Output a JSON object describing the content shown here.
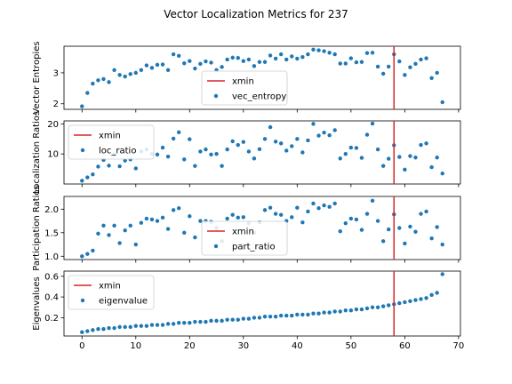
{
  "figure": {
    "title": "Vector Localization Metrics for 237",
    "x_ticks": [
      0,
      10,
      20,
      30,
      40,
      50,
      60,
      70
    ]
  },
  "chart_data": [
    {
      "type": "scatter",
      "ylabel": "Vector Entropies",
      "xlim": [
        -3.35,
        70.35
      ],
      "ylim": [
        1.82,
        3.86
      ],
      "y_ticks": [
        2,
        3
      ],
      "legend": {
        "position": "bottom-center",
        "entries": [
          "xmin",
          "vec_entropy"
        ]
      },
      "series": [
        {
          "name": "vec_entropy",
          "color": "#1f77b4",
          "y": [
            1.92,
            2.35,
            2.65,
            2.76,
            2.8,
            2.7,
            3.09,
            2.93,
            2.88,
            2.96,
            3.0,
            3.09,
            3.24,
            3.16,
            3.26,
            3.27,
            3.09,
            3.6,
            3.55,
            3.31,
            3.38,
            3.14,
            3.29,
            3.37,
            3.33,
            3.09,
            3.19,
            3.43,
            3.49,
            3.48,
            3.38,
            3.43,
            3.22,
            3.35,
            3.35,
            3.56,
            3.46,
            3.6,
            3.43,
            3.53,
            3.46,
            3.51,
            3.6,
            3.75,
            3.73,
            3.7,
            3.65,
            3.6,
            3.3,
            3.3,
            3.47,
            3.34,
            3.35,
            3.64,
            3.65,
            3.2,
            2.97,
            3.2,
            3.6,
            3.37,
            2.93,
            3.18,
            3.29,
            3.43,
            3.47,
            2.83,
            3.0,
            2.05
          ]
        }
      ],
      "vline": {
        "name": "xmin",
        "x": 58,
        "color": "#d62728"
      }
    },
    {
      "type": "scatter",
      "ylabel": "Localization Ratios",
      "xlim": [
        -3.35,
        70.35
      ],
      "ylim": [
        0.0,
        21.0
      ],
      "y_ticks": [
        10,
        20
      ],
      "legend": {
        "position": "top-left",
        "entries": [
          "xmin",
          "loc_ratio"
        ]
      },
      "series": [
        {
          "name": "loc_ratio",
          "color": "#1f77b4",
          "y": [
            1.1,
            2.2,
            3.2,
            5.8,
            8.0,
            6.1,
            9.7,
            5.9,
            7.8,
            8.2,
            5.2,
            10.8,
            11.5,
            10.0,
            9.8,
            12.1,
            9.1,
            15.1,
            17.2,
            8.2,
            14.9,
            6.0,
            10.8,
            11.5,
            9.8,
            10.0,
            6.0,
            11.5,
            14.2,
            13.0,
            14.0,
            10.8,
            8.5,
            11.6,
            15.0,
            18.9,
            14.1,
            13.5,
            11.1,
            12.6,
            15.0,
            10.5,
            14.5,
            20.0,
            16.1,
            17.1,
            16.2,
            17.9,
            8.5,
            10.0,
            12.1,
            12.0,
            8.7,
            16.4,
            20.1,
            11.5,
            6.0,
            8.4,
            12.9,
            9.0,
            4.8,
            9.3,
            8.8,
            13.0,
            13.5,
            5.6,
            8.8,
            3.5
          ]
        }
      ],
      "vline": {
        "name": "xmin",
        "x": 58,
        "color": "#d62728"
      }
    },
    {
      "type": "scatter",
      "ylabel": "Participation Ratios",
      "xlim": [
        -3.35,
        70.35
      ],
      "ylim": [
        0.93,
        2.27
      ],
      "y_ticks": [
        1.0,
        1.5,
        2.0
      ],
      "legend": {
        "position": "bottom-center",
        "entries": [
          "xmin",
          "part_ratio"
        ]
      },
      "series": [
        {
          "name": "part_ratio",
          "color": "#1f77b4",
          "y": [
            1.0,
            1.05,
            1.12,
            1.48,
            1.65,
            1.45,
            1.65,
            1.28,
            1.55,
            1.65,
            1.25,
            1.71,
            1.8,
            1.78,
            1.75,
            1.82,
            1.58,
            1.98,
            2.02,
            1.5,
            1.85,
            1.4,
            1.75,
            1.75,
            1.73,
            1.6,
            1.32,
            1.8,
            1.88,
            1.82,
            1.83,
            1.7,
            1.5,
            1.72,
            1.98,
            2.03,
            1.9,
            1.88,
            1.75,
            1.83,
            2.03,
            1.72,
            1.95,
            2.12,
            2.02,
            2.08,
            2.05,
            2.12,
            1.53,
            1.7,
            1.8,
            1.78,
            1.56,
            1.9,
            2.18,
            1.75,
            1.32,
            1.57,
            1.89,
            1.6,
            1.27,
            1.63,
            1.52,
            1.9,
            1.95,
            1.38,
            1.62,
            1.25
          ]
        }
      ],
      "vline": {
        "name": "xmin",
        "x": 58,
        "color": "#d62728"
      }
    },
    {
      "type": "scatter",
      "ylabel": "Eigenvalues",
      "xlim": [
        -3.35,
        70.35
      ],
      "ylim": [
        0.023,
        0.65
      ],
      "y_ticks": [
        0.2,
        0.4,
        0.6
      ],
      "legend": {
        "position": "top-left",
        "entries": [
          "xmin",
          "eigenvalue"
        ]
      },
      "series": [
        {
          "name": "eigenvalue",
          "color": "#1f77b4",
          "y": [
            0.06,
            0.07,
            0.08,
            0.09,
            0.09,
            0.1,
            0.1,
            0.11,
            0.11,
            0.11,
            0.12,
            0.12,
            0.12,
            0.13,
            0.13,
            0.13,
            0.14,
            0.14,
            0.15,
            0.15,
            0.15,
            0.16,
            0.16,
            0.16,
            0.17,
            0.17,
            0.17,
            0.18,
            0.18,
            0.18,
            0.19,
            0.19,
            0.2,
            0.2,
            0.21,
            0.21,
            0.21,
            0.22,
            0.22,
            0.22,
            0.23,
            0.23,
            0.23,
            0.24,
            0.24,
            0.25,
            0.25,
            0.26,
            0.26,
            0.27,
            0.27,
            0.28,
            0.28,
            0.29,
            0.3,
            0.3,
            0.31,
            0.32,
            0.33,
            0.34,
            0.35,
            0.36,
            0.37,
            0.38,
            0.39,
            0.42,
            0.44,
            0.62
          ]
        }
      ],
      "vline": {
        "name": "xmin",
        "x": 58,
        "color": "#d62728"
      }
    }
  ]
}
